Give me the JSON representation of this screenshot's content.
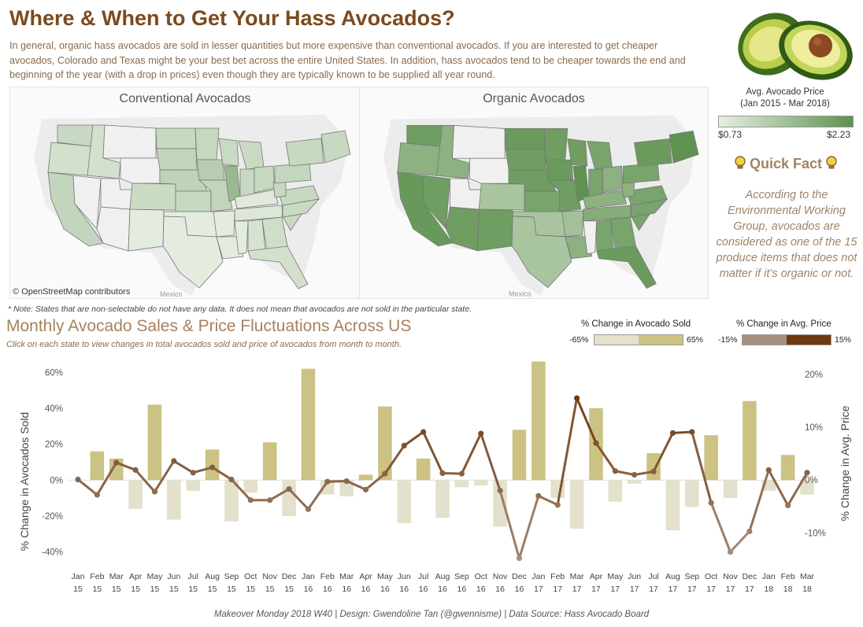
{
  "header": {
    "title": "Where & When to Get Your Hass Avocados?",
    "intro": "In general, organic hass avocados are sold in lesser quantities but more expensive than conventional avocados. If you are interested to get cheaper avocados, Colorado and Texas might be your best bet across the entire United States. In addition, hass avocados tend to be cheaper towards the end and beginning of the year (with a drop in prices) even though they are typically known to be supplied all year round."
  },
  "maps": {
    "conventional_title": "Conventional Avocados",
    "organic_title": "Organic Avocados",
    "osm_credit": "© OpenStreetMap contributors",
    "mexico_label": "Mexico",
    "note": "* Note: States that are non-selectable do not have any data. It does not mean that avocados are not sold in the particular state."
  },
  "price_legend": {
    "title_line1": "Avg. Avocado Price",
    "title_line2": "(Jan 2015 - Mar 2018)",
    "min": "$0.73",
    "max": "$2.23",
    "color_low": "#e6eee2",
    "color_high": "#5d9250"
  },
  "quick_fact": {
    "title": "Quick Fact",
    "icon": "lightbulb-icon",
    "text": "According to the Environmental Working Group, avocados are considered as one of the 15 produce items that does not matter if it’s organic or not."
  },
  "section": {
    "title": "Monthly Avocado Sales & Price Fluctuations Across US",
    "subtitle": "Click on each state to view changes in total avocados sold and price of avocados from month to month."
  },
  "sold_legend": {
    "title": "% Change in Avocado Sold",
    "min": "-65%",
    "max": "65%",
    "color_low": "#e3e0cb",
    "color_high": "#cbc283"
  },
  "price_change_legend": {
    "title": "% Change in Avg. Price",
    "min": "-15%",
    "max": "15%",
    "color_low": "#a8907e",
    "color_high": "#6e3a10"
  },
  "chart_data": {
    "type": "bar",
    "x_months": [
      "Jan",
      "Feb",
      "Mar",
      "Apr",
      "May",
      "Jun",
      "Jul",
      "Aug",
      "Sep",
      "Oct",
      "Nov",
      "Dec",
      "Jan",
      "Feb",
      "Mar",
      "Apr",
      "May",
      "Jun",
      "Jul",
      "Aug",
      "Sep",
      "Oct",
      "Nov",
      "Dec",
      "Jan",
      "Feb",
      "Mar",
      "Apr",
      "May",
      "Jun",
      "Jul",
      "Aug",
      "Sep",
      "Oct",
      "Nov",
      "Dec",
      "Jan",
      "Feb",
      "Mar"
    ],
    "x_years": [
      "15",
      "15",
      "15",
      "15",
      "15",
      "15",
      "15",
      "15",
      "15",
      "15",
      "15",
      "15",
      "16",
      "16",
      "16",
      "16",
      "16",
      "16",
      "16",
      "16",
      "16",
      "16",
      "16",
      "16",
      "17",
      "17",
      "17",
      "17",
      "17",
      "17",
      "17",
      "17",
      "17",
      "17",
      "17",
      "17",
      "18",
      "18",
      "18"
    ],
    "series": [
      {
        "name": "% Change in Avocados Sold",
        "type": "bar",
        "axis": "left",
        "values": [
          0,
          16,
          12,
          -16,
          42,
          -22,
          -6,
          17,
          -23,
          -7,
          21,
          -20,
          62,
          -8,
          -9,
          3,
          41,
          -24,
          12,
          -21,
          -4,
          -3,
          -26,
          28,
          66,
          -10,
          -27,
          40,
          -12,
          -2,
          15,
          -28,
          -15,
          25,
          -10,
          44,
          -6,
          14,
          -8
        ]
      },
      {
        "name": "% Change in Avg. Price",
        "type": "line",
        "axis": "right",
        "values": [
          0.1,
          -2.8,
          3.3,
          1.9,
          -2.2,
          3.6,
          1.4,
          2.4,
          0.1,
          -3.8,
          -3.8,
          -1.7,
          -5.5,
          -0.3,
          -0.2,
          -1.8,
          1.2,
          6.5,
          9.1,
          1.3,
          1.2,
          8.8,
          -2.0,
          -14.8,
          -3.0,
          -4.7,
          15.5,
          7.0,
          1.7,
          1.0,
          1.6,
          8.9,
          9.1,
          -4.3,
          -13.6,
          -9.7,
          1.9,
          -4.8,
          1.4
        ]
      }
    ],
    "ylabel_left": "% Change in Avocados Sold",
    "ylabel_right": "% Change in Avg. Price",
    "ylim_left": [
      -45,
      68
    ],
    "ylim_right": [
      -15.3,
      23.1
    ],
    "yticks_left": [
      -40,
      -20,
      0,
      20,
      40,
      60
    ],
    "yticks_right": [
      -10,
      0,
      10,
      20
    ],
    "ytick_left_labels": [
      "-40%",
      "-20%",
      "0%",
      "20%",
      "40%",
      "60%"
    ],
    "ytick_right_labels": [
      "-10%",
      "0%",
      "10%",
      "20%"
    ],
    "bar_color_positive": "#cbc283",
    "bar_color_negative": "#e3e0cb",
    "line_color_high": "#6e3a10",
    "line_color_low": "#a8907e"
  },
  "footer": "Makeover Monday 2018 W40 | Design: Gwendoline Tan (@gwennisme) | Data Source: Hass Avocado Board"
}
